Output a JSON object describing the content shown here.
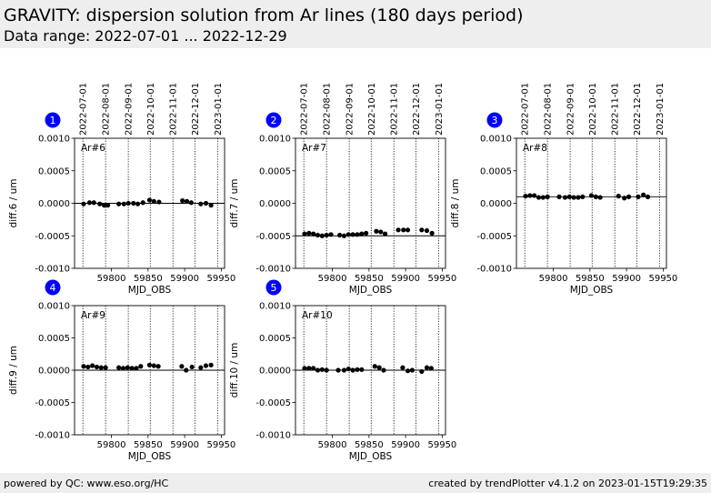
{
  "header": {
    "title": "GRAVITY: dispersion solution from Ar lines (180 days period)",
    "subtitle": "Data range: 2022-07-01 ... 2022-12-29"
  },
  "footer": {
    "left": "powered by QC: www.eso.org/HC",
    "right": "created by trendPlotter v4.1.2 on 2023-01-15T19:29:35"
  },
  "colors": {
    "badge": "#0000ff",
    "points": "#000000",
    "reference_line": "#000000",
    "date_lines": "#000000"
  },
  "chart_data": [
    {
      "type": "scatter",
      "panel": "1",
      "label": "Ar#6",
      "ylabel": "diff.6 / um",
      "xlabel": "MJD_OBS",
      "xlim": [
        59749.6,
        59954.5
      ],
      "ylim": [
        -0.001,
        0.001
      ],
      "reference": 0.0,
      "xticks": [
        59800,
        59850,
        59900,
        59950
      ],
      "yticks": [
        -0.001,
        -0.0005,
        0.0,
        0.0005,
        0.001
      ],
      "ytick_labels": [
        "-0.0010",
        "-0.0005",
        "0.0000",
        "0.0005",
        "0.0010"
      ],
      "date_ticks": [
        {
          "label": "2022-07-01",
          "mjd": 59761
        },
        {
          "label": "2022-08-01",
          "mjd": 59792
        },
        {
          "label": "2022-09-01",
          "mjd": 59823
        },
        {
          "label": "2022-10-01",
          "mjd": 59853
        },
        {
          "label": "2022-11-01",
          "mjd": 59884
        },
        {
          "label": "2022-12-01",
          "mjd": 59914
        },
        {
          "label": "2023-01-01",
          "mjd": 59945
        }
      ],
      "x": [
        59762,
        59770,
        59776,
        59784,
        59790,
        59795,
        59810,
        59817,
        59823,
        59830,
        59836,
        59843,
        59852,
        59858,
        59865,
        59897,
        59903,
        59909,
        59922,
        59929,
        59936
      ],
      "y": [
        -1e-05,
        1e-05,
        1e-05,
        -1e-05,
        -3e-05,
        -3e-05,
        -1e-05,
        -1e-05,
        0.0,
        0.0,
        -1e-05,
        1e-05,
        5e-05,
        3e-05,
        2e-05,
        4e-05,
        3e-05,
        1e-05,
        -1e-05,
        0.0,
        -3e-05
      ]
    },
    {
      "type": "scatter",
      "panel": "2",
      "label": "Ar#7",
      "ylabel": "diff.7 / um",
      "xlabel": "MJD_OBS",
      "xlim": [
        59749.6,
        59954.5
      ],
      "ylim": [
        -0.001,
        0.001
      ],
      "reference": -0.0005,
      "xticks": [
        59800,
        59850,
        59900,
        59950
      ],
      "yticks": [
        -0.001,
        -0.0005,
        0.0,
        0.0005,
        0.001
      ],
      "ytick_labels": [
        "-0.0010",
        "-0.0005",
        "0.0000",
        "0.0005",
        "0.0010"
      ],
      "date_ticks": [
        {
          "label": "2022-07-01",
          "mjd": 59761
        },
        {
          "label": "2022-08-01",
          "mjd": 59792
        },
        {
          "label": "2022-09-01",
          "mjd": 59823
        },
        {
          "label": "2022-10-01",
          "mjd": 59853
        },
        {
          "label": "2022-11-01",
          "mjd": 59884
        },
        {
          "label": "2022-12-01",
          "mjd": 59914
        },
        {
          "label": "2023-01-01",
          "mjd": 59945
        }
      ],
      "x": [
        59762,
        59768,
        59774,
        59780,
        59786,
        59792,
        59798,
        59810,
        59816,
        59822,
        59828,
        59834,
        59840,
        59846,
        59860,
        59866,
        59872,
        59890,
        59897,
        59903,
        59922,
        59929,
        59936
      ],
      "y": [
        -0.00047,
        -0.00046,
        -0.00047,
        -0.00049,
        -0.0005,
        -0.00049,
        -0.00048,
        -0.00049,
        -0.0005,
        -0.00048,
        -0.00048,
        -0.00048,
        -0.00047,
        -0.00046,
        -0.00043,
        -0.00044,
        -0.00047,
        -0.00041,
        -0.00041,
        -0.00041,
        -0.00041,
        -0.00042,
        -0.00046
      ]
    },
    {
      "type": "scatter",
      "panel": "3",
      "label": "Ar#8",
      "ylabel": "diff.8 / um",
      "xlabel": "MJD_OBS",
      "xlim": [
        59749.6,
        59954.5
      ],
      "ylim": [
        -0.001,
        0.001
      ],
      "reference": 0.0001,
      "xticks": [
        59800,
        59850,
        59900,
        59950
      ],
      "yticks": [
        -0.001,
        -0.0005,
        0.0,
        0.0005,
        0.001
      ],
      "ytick_labels": [
        "-0.0010",
        "-0.0005",
        "0.0000",
        "0.0005",
        "0.0010"
      ],
      "date_ticks": [
        {
          "label": "2022-07-01",
          "mjd": 59761
        },
        {
          "label": "2022-08-01",
          "mjd": 59792
        },
        {
          "label": "2022-09-01",
          "mjd": 59823
        },
        {
          "label": "2022-10-01",
          "mjd": 59853
        },
        {
          "label": "2022-11-01",
          "mjd": 59884
        },
        {
          "label": "2022-12-01",
          "mjd": 59914
        },
        {
          "label": "2023-01-01",
          "mjd": 59945
        }
      ],
      "x": [
        59762,
        59768,
        59774,
        59780,
        59786,
        59792,
        59808,
        59816,
        59822,
        59828,
        59834,
        59840,
        59852,
        59858,
        59864,
        59889,
        59897,
        59903,
        59916,
        59923,
        59929
      ],
      "y": [
        0.00011,
        0.00012,
        0.00012,
        9e-05,
        9e-05,
        0.0001,
        0.0001,
        9e-05,
        0.0001,
        9e-05,
        9e-05,
        0.0001,
        0.00012,
        0.0001,
        9e-05,
        0.00011,
        8e-05,
        0.0001,
        0.0001,
        0.00013,
        0.0001
      ]
    },
    {
      "type": "scatter",
      "panel": "4",
      "label": "Ar#9",
      "ylabel": "diff.9 / um",
      "xlabel": "MJD_OBS",
      "xlim": [
        59749.6,
        59954.5
      ],
      "ylim": [
        -0.001,
        0.001
      ],
      "reference": 0.0,
      "xticks": [
        59800,
        59850,
        59900,
        59950
      ],
      "yticks": [
        -0.001,
        -0.0005,
        0.0,
        0.0005,
        0.001
      ],
      "ytick_labels": [
        "-0.0010",
        "-0.0005",
        "0.0000",
        "0.0005",
        "0.0010"
      ],
      "date_ticks": [
        {
          "label": "2022-07-01",
          "mjd": 59761
        },
        {
          "label": "2022-08-01",
          "mjd": 59792
        },
        {
          "label": "2022-09-01",
          "mjd": 59823
        },
        {
          "label": "2022-10-01",
          "mjd": 59853
        },
        {
          "label": "2022-11-01",
          "mjd": 59884
        },
        {
          "label": "2022-12-01",
          "mjd": 59914
        },
        {
          "label": "2023-01-01",
          "mjd": 59945
        }
      ],
      "x": [
        59762,
        59768,
        59774,
        59780,
        59786,
        59792,
        59810,
        59816,
        59822,
        59828,
        59834,
        59840,
        59852,
        59858,
        59864,
        59896,
        59902,
        59910,
        59922,
        59929,
        59936
      ],
      "y": [
        6e-05,
        5e-05,
        7e-05,
        5e-05,
        4e-05,
        4e-05,
        4e-05,
        3e-05,
        4e-05,
        3e-05,
        3e-05,
        6e-05,
        8e-05,
        7e-05,
        6e-05,
        6e-05,
        0.0,
        5e-05,
        4e-05,
        7e-05,
        8e-05
      ]
    },
    {
      "type": "scatter",
      "panel": "5",
      "label": "Ar#10",
      "ylabel": "diff.10 / um",
      "xlabel": "MJD_OBS",
      "xlim": [
        59749.6,
        59954.5
      ],
      "ylim": [
        -0.001,
        0.001
      ],
      "reference": 0.0,
      "xticks": [
        59800,
        59850,
        59900,
        59950
      ],
      "yticks": [
        -0.001,
        -0.0005,
        0.0,
        0.0005,
        0.001
      ],
      "ytick_labels": [
        "-0.0010",
        "-0.0005",
        "0.0000",
        "0.0005",
        "0.0010"
      ],
      "date_ticks": [
        {
          "label": "2022-07-01",
          "mjd": 59761
        },
        {
          "label": "2022-08-01",
          "mjd": 59792
        },
        {
          "label": "2022-09-01",
          "mjd": 59823
        },
        {
          "label": "2022-10-01",
          "mjd": 59853
        },
        {
          "label": "2022-11-01",
          "mjd": 59884
        },
        {
          "label": "2022-12-01",
          "mjd": 59914
        },
        {
          "label": "2023-01-01",
          "mjd": 59945
        }
      ],
      "x": [
        59762,
        59768,
        59774,
        59780,
        59786,
        59792,
        59808,
        59816,
        59822,
        59828,
        59834,
        59840,
        59858,
        59864,
        59870,
        59896,
        59903,
        59909,
        59922,
        59929,
        59935
      ],
      "y": [
        3e-05,
        3e-05,
        3e-05,
        0.0,
        1e-05,
        0.0,
        0.0,
        0.0,
        2e-05,
        0.0,
        1e-05,
        1e-05,
        6e-05,
        4e-05,
        0.0,
        4e-05,
        -1e-05,
        0.0,
        -2e-05,
        4e-05,
        3e-05
      ]
    }
  ]
}
